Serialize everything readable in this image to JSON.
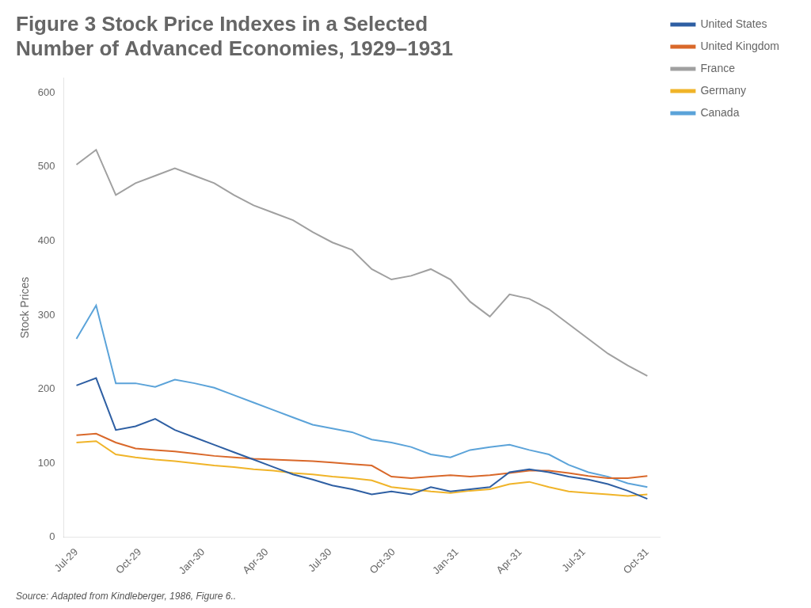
{
  "chart_data": {
    "type": "line",
    "title": "Figure 3 Stock Price Indexes in a Selected\nNumber of Advanced Economies, 1929–1931",
    "annotations": [
      "Source: Adapted from Kindleberger, 1986, Figure 6.."
    ],
    "y_label": "Stock Prices",
    "x": [
      0,
      0.310345,
      0.62069,
      0.931034,
      1.241379,
      1.551724,
      1.862069,
      2.172414,
      2.482759,
      2.793103,
      3.103448,
      3.413793,
      3.724138,
      4.034483,
      4.344828,
      4.655172,
      4.965517,
      5.275862,
      5.586207,
      5.896552,
      6.206897,
      6.517241,
      6.827586,
      7.137931,
      7.448276,
      7.758621,
      8.068966,
      8.37931,
      8.689655,
      9
    ],
    "series": [
      {
        "name": "United States",
        "color": "#2e5fa3",
        "values": [
          205,
          215,
          145,
          150,
          160,
          145,
          135,
          125,
          115,
          105,
          95,
          85,
          78,
          70,
          65,
          58,
          62,
          58,
          68,
          62,
          65,
          68,
          88,
          92,
          88,
          82,
          78,
          72,
          63,
          52
        ]
      },
      {
        "name": "United Kingdom",
        "color": "#d9682a",
        "values": [
          138,
          140,
          128,
          120,
          118,
          116,
          113,
          110,
          108,
          106,
          105,
          104,
          103,
          101,
          99,
          97,
          82,
          80,
          82,
          84,
          82,
          84,
          87,
          90,
          90,
          87,
          83,
          80,
          80,
          83
        ]
      },
      {
        "name": "France",
        "color": "#a0a0a0",
        "values": [
          503,
          523,
          462,
          478,
          488,
          498,
          488,
          478,
          462,
          448,
          438,
          428,
          412,
          398,
          388,
          362,
          348,
          353,
          362,
          348,
          318,
          298,
          328,
          322,
          308,
          288,
          268,
          248,
          232,
          218
        ]
      },
      {
        "name": "Germany",
        "color": "#f0b429",
        "values": [
          128,
          130,
          112,
          108,
          105,
          103,
          100,
          97,
          95,
          92,
          90,
          87,
          85,
          82,
          80,
          77,
          68,
          65,
          62,
          60,
          63,
          65,
          72,
          75,
          68,
          62,
          60,
          58,
          56,
          58
        ]
      },
      {
        "name": "Canada",
        "color": "#5ba3d9",
        "values": [
          268,
          313,
          208,
          208,
          203,
          213,
          208,
          202,
          192,
          182,
          172,
          162,
          152,
          147,
          142,
          132,
          128,
          122,
          112,
          108,
          118,
          122,
          125,
          118,
          112,
          98,
          88,
          82,
          73,
          68
        ]
      }
    ],
    "xlim": [
      -0.2,
      9.2
    ],
    "xticks": [
      {
        "value": 0,
        "label": "Jul-29"
      },
      {
        "value": 1,
        "label": "Oct-29"
      },
      {
        "value": 2,
        "label": "Jan-30"
      },
      {
        "value": 3,
        "label": "Apr-30"
      },
      {
        "value": 4,
        "label": "Jul-30"
      },
      {
        "value": 5,
        "label": "Oct-30"
      },
      {
        "value": 6,
        "label": "Jan-31"
      },
      {
        "value": 7,
        "label": "Apr-31"
      },
      {
        "value": 8,
        "label": "Jul-31"
      },
      {
        "value": 9,
        "label": "Oct-31"
      }
    ],
    "ylim": [
      0,
      620
    ],
    "yticks": [
      0,
      100,
      200,
      300,
      400,
      500,
      600
    ],
    "grid": false,
    "legend": "right"
  }
}
